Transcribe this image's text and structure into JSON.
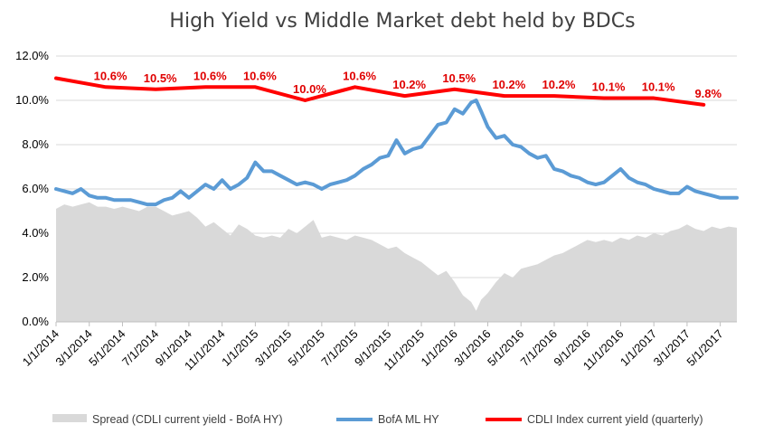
{
  "chart_data": {
    "type": "line",
    "title": "High Yield  vs  Middle Market debt held by BDCs",
    "xlabel": "",
    "ylabel": "",
    "ylim": [
      0,
      12
    ],
    "y_tick_labels": [
      "0.0%",
      "2.0%",
      "4.0%",
      "6.0%",
      "8.0%",
      "10.0%",
      "12.0%"
    ],
    "y_tick_values": [
      0,
      2,
      4,
      6,
      8,
      10,
      12
    ],
    "x_tick_labels": [
      "1/1/2014",
      "3/1/2014",
      "5/1/2014",
      "7/1/2014",
      "9/1/2014",
      "11/1/2014",
      "1/1/2015",
      "3/1/2015",
      "5/1/2015",
      "7/1/2015",
      "9/1/2015",
      "11/1/2015",
      "1/1/2016",
      "3/1/2016",
      "5/1/2016",
      "7/1/2016",
      "9/1/2016",
      "11/1/2016",
      "1/1/2017",
      "3/1/2017",
      "5/1/2017"
    ],
    "grid": true,
    "legend_position": "bottom",
    "series": [
      {
        "name": "Spread (CDLI current yield - BofA HY)",
        "kind": "area",
        "color": "#d9d9d9",
        "points": [
          [
            0,
            5.1
          ],
          [
            0.5,
            5.3
          ],
          [
            1,
            5.2
          ],
          [
            1.5,
            5.3
          ],
          [
            2,
            5.4
          ],
          [
            2.5,
            5.2
          ],
          [
            3,
            5.2
          ],
          [
            3.5,
            5.1
          ],
          [
            4,
            5.2
          ],
          [
            4.5,
            5.1
          ],
          [
            5,
            5.0
          ],
          [
            5.5,
            5.2
          ],
          [
            6,
            5.2
          ],
          [
            6.5,
            5.0
          ],
          [
            7,
            4.8
          ],
          [
            7.5,
            4.9
          ],
          [
            8,
            5.0
          ],
          [
            8.5,
            4.7
          ],
          [
            9,
            4.3
          ],
          [
            9.5,
            4.5
          ],
          [
            10,
            4.2
          ],
          [
            10.5,
            3.9
          ],
          [
            11,
            4.4
          ],
          [
            11.5,
            4.2
          ],
          [
            12,
            3.9
          ],
          [
            12.5,
            3.8
          ],
          [
            13,
            3.9
          ],
          [
            13.5,
            3.8
          ],
          [
            14,
            4.2
          ],
          [
            14.5,
            4.0
          ],
          [
            15,
            4.3
          ],
          [
            15.5,
            4.6
          ],
          [
            16,
            3.8
          ],
          [
            16.5,
            3.9
          ],
          [
            17,
            3.8
          ],
          [
            17.5,
            3.7
          ],
          [
            18,
            3.9
          ],
          [
            18.5,
            3.8
          ],
          [
            19,
            3.7
          ],
          [
            19.5,
            3.5
          ],
          [
            20,
            3.3
          ],
          [
            20.5,
            3.4
          ],
          [
            21,
            3.1
          ],
          [
            21.5,
            2.9
          ],
          [
            22,
            2.7
          ],
          [
            22.5,
            2.4
          ],
          [
            23,
            2.1
          ],
          [
            23.5,
            2.3
          ],
          [
            24,
            1.8
          ],
          [
            24.5,
            1.2
          ],
          [
            25,
            0.9
          ],
          [
            25.3,
            0.5
          ],
          [
            25.6,
            1.0
          ],
          [
            26,
            1.3
          ],
          [
            26.5,
            1.8
          ],
          [
            27,
            2.2
          ],
          [
            27.5,
            2.0
          ],
          [
            28,
            2.4
          ],
          [
            28.5,
            2.5
          ],
          [
            29,
            2.6
          ],
          [
            29.5,
            2.8
          ],
          [
            30,
            3.0
          ],
          [
            30.5,
            3.1
          ],
          [
            31,
            3.3
          ],
          [
            31.5,
            3.5
          ],
          [
            32,
            3.7
          ],
          [
            32.5,
            3.6
          ],
          [
            33,
            3.7
          ],
          [
            33.5,
            3.6
          ],
          [
            34,
            3.8
          ],
          [
            34.5,
            3.7
          ],
          [
            35,
            3.9
          ],
          [
            35.5,
            3.8
          ],
          [
            36,
            4.0
          ],
          [
            36.5,
            3.9
          ],
          [
            37,
            4.1
          ],
          [
            37.5,
            4.2
          ],
          [
            38,
            4.4
          ],
          [
            38.5,
            4.2
          ],
          [
            39,
            4.1
          ],
          [
            39.5,
            4.3
          ],
          [
            40,
            4.2
          ],
          [
            40.5,
            4.3
          ],
          [
            41,
            4.25
          ]
        ]
      },
      {
        "name": "BofA ML HY",
        "kind": "line",
        "color": "#5b9bd5",
        "points": [
          [
            0,
            6.0
          ],
          [
            0.5,
            5.9
          ],
          [
            1,
            5.8
          ],
          [
            1.5,
            6.0
          ],
          [
            2,
            5.7
          ],
          [
            2.5,
            5.6
          ],
          [
            3,
            5.6
          ],
          [
            3.5,
            5.5
          ],
          [
            4,
            5.5
          ],
          [
            4.5,
            5.5
          ],
          [
            5,
            5.4
          ],
          [
            5.5,
            5.3
          ],
          [
            6,
            5.3
          ],
          [
            6.5,
            5.5
          ],
          [
            7,
            5.6
          ],
          [
            7.5,
            5.9
          ],
          [
            8,
            5.6
          ],
          [
            8.5,
            5.9
          ],
          [
            9,
            6.2
          ],
          [
            9.5,
            6.0
          ],
          [
            10,
            6.4
          ],
          [
            10.5,
            6.0
          ],
          [
            11,
            6.2
          ],
          [
            11.5,
            6.5
          ],
          [
            12,
            7.2
          ],
          [
            12.5,
            6.8
          ],
          [
            13,
            6.8
          ],
          [
            13.5,
            6.6
          ],
          [
            14,
            6.4
          ],
          [
            14.5,
            6.2
          ],
          [
            15,
            6.3
          ],
          [
            15.5,
            6.2
          ],
          [
            16,
            6.0
          ],
          [
            16.5,
            6.2
          ],
          [
            17,
            6.3
          ],
          [
            17.5,
            6.4
          ],
          [
            18,
            6.6
          ],
          [
            18.5,
            6.9
          ],
          [
            19,
            7.1
          ],
          [
            19.5,
            7.4
          ],
          [
            20,
            7.5
          ],
          [
            20.5,
            8.2
          ],
          [
            21,
            7.6
          ],
          [
            21.5,
            7.8
          ],
          [
            22,
            7.9
          ],
          [
            22.5,
            8.4
          ],
          [
            23,
            8.9
          ],
          [
            23.5,
            9.0
          ],
          [
            24,
            9.6
          ],
          [
            24.5,
            9.4
          ],
          [
            25,
            9.9
          ],
          [
            25.3,
            10.0
          ],
          [
            25.6,
            9.5
          ],
          [
            26,
            8.8
          ],
          [
            26.5,
            8.3
          ],
          [
            27,
            8.4
          ],
          [
            27.5,
            8.0
          ],
          [
            28,
            7.9
          ],
          [
            28.5,
            7.6
          ],
          [
            29,
            7.4
          ],
          [
            29.5,
            7.5
          ],
          [
            30,
            6.9
          ],
          [
            30.5,
            6.8
          ],
          [
            31,
            6.6
          ],
          [
            31.5,
            6.5
          ],
          [
            32,
            6.3
          ],
          [
            32.5,
            6.2
          ],
          [
            33,
            6.3
          ],
          [
            33.5,
            6.6
          ],
          [
            34,
            6.9
          ],
          [
            34.5,
            6.5
          ],
          [
            35,
            6.3
          ],
          [
            35.5,
            6.2
          ],
          [
            36,
            6.0
          ],
          [
            36.5,
            5.9
          ],
          [
            37,
            5.8
          ],
          [
            37.5,
            5.8
          ],
          [
            38,
            6.1
          ],
          [
            38.5,
            5.9
          ],
          [
            39,
            5.8
          ],
          [
            39.5,
            5.7
          ],
          [
            40,
            5.6
          ],
          [
            40.5,
            5.6
          ],
          [
            41,
            5.6
          ]
        ]
      },
      {
        "name": "CDLI Index current yield (quarterly)",
        "kind": "line",
        "color": "#ff0000",
        "points": [
          [
            0,
            11.0
          ],
          [
            3,
            10.6
          ],
          [
            6,
            10.5
          ],
          [
            9,
            10.6
          ],
          [
            12,
            10.6
          ],
          [
            15,
            10.0
          ],
          [
            18,
            10.6
          ],
          [
            21,
            10.2
          ],
          [
            24,
            10.5
          ],
          [
            27,
            10.2
          ],
          [
            30,
            10.2
          ],
          [
            33,
            10.1
          ],
          [
            36,
            10.1
          ],
          [
            39,
            9.8
          ]
        ],
        "data_labels": [
          null,
          "10.6%",
          "10.5%",
          "10.6%",
          "10.6%",
          "10.0%",
          "10.6%",
          "10.2%",
          "10.5%",
          "10.2%",
          "10.2%",
          "10.1%",
          "10.1%",
          "9.8%"
        ]
      }
    ]
  }
}
